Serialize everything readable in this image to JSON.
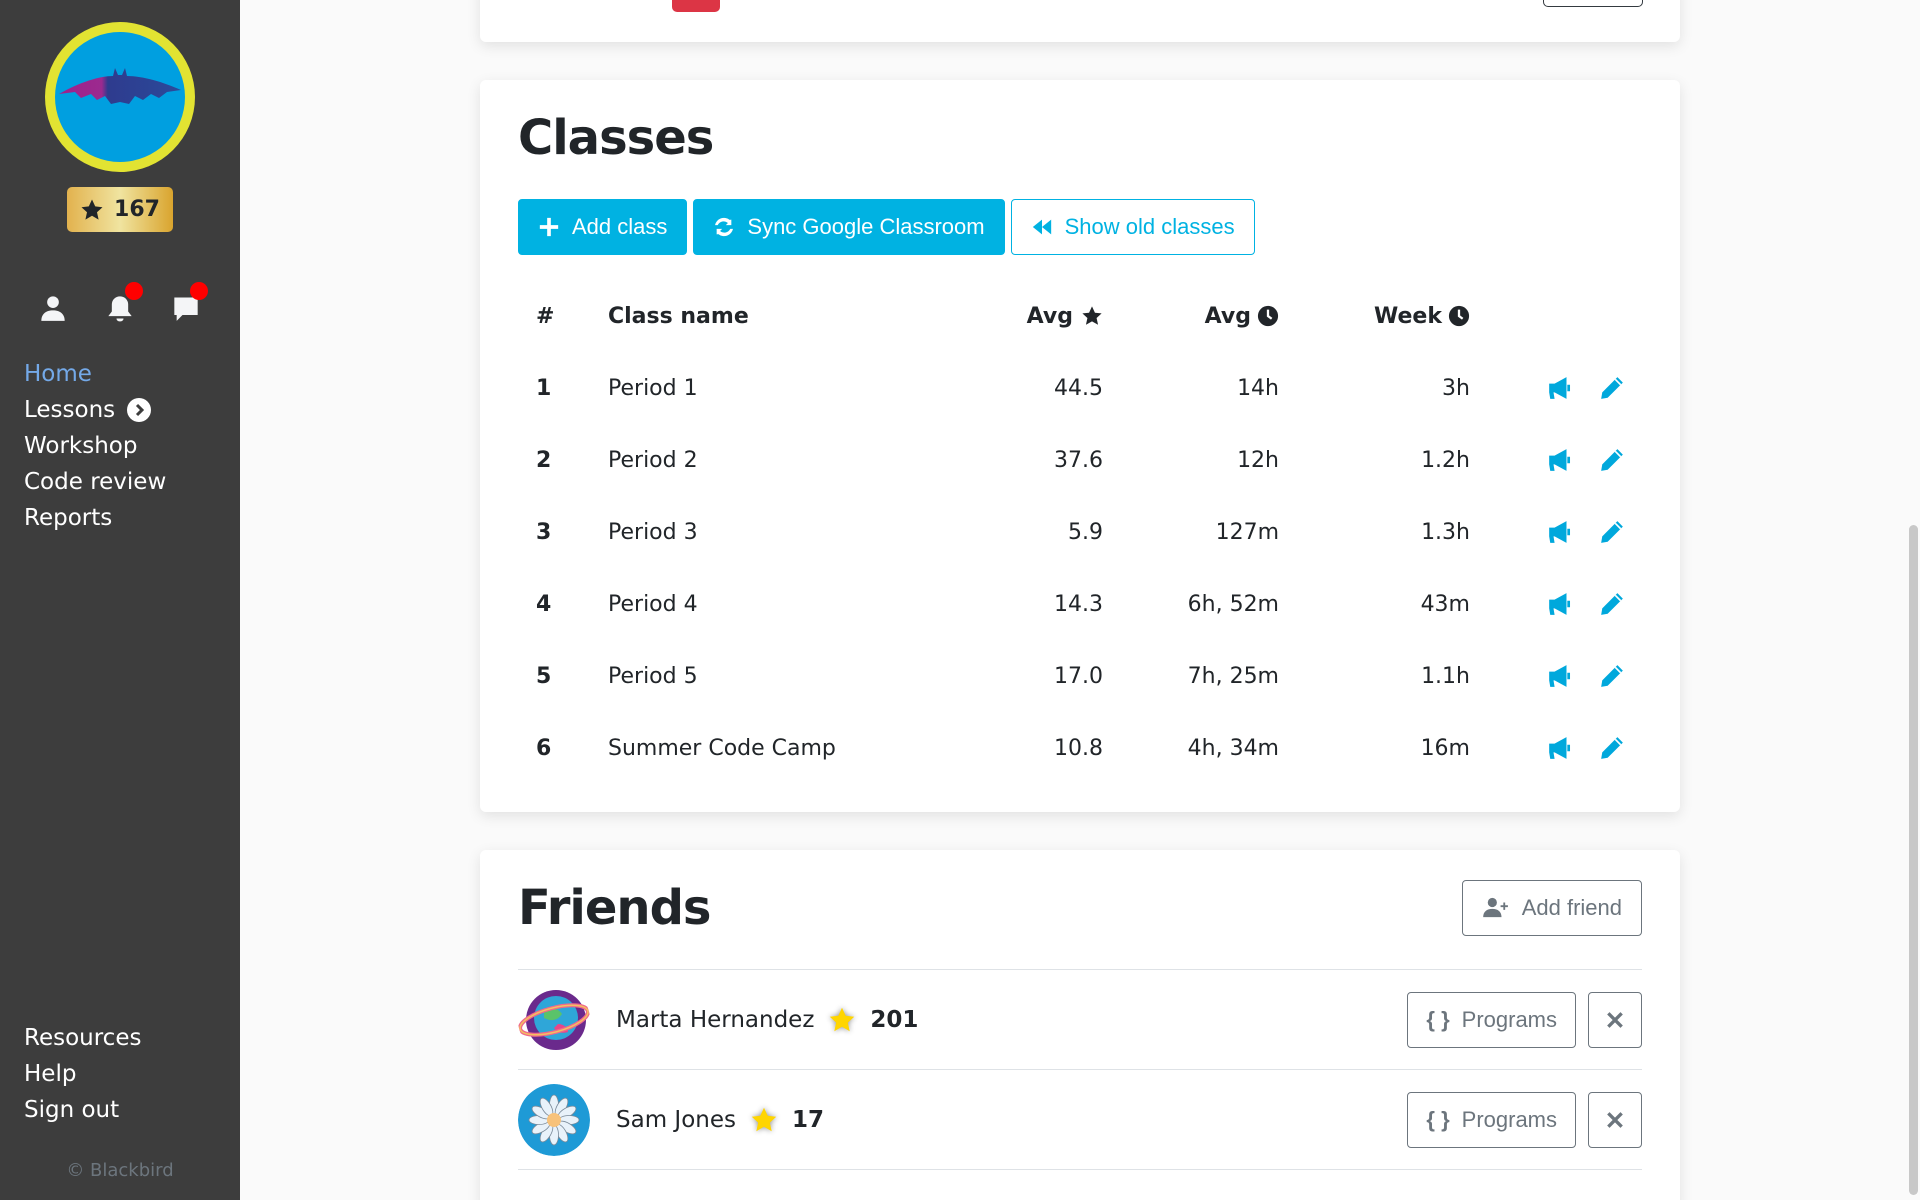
{
  "sidebar": {
    "stars": "167",
    "nav": [
      {
        "label": "Home",
        "active": true
      },
      {
        "label": "Lessons",
        "has_chevron": true
      },
      {
        "label": "Workshop"
      },
      {
        "label": "Code review"
      },
      {
        "label": "Reports"
      }
    ],
    "nav_bottom": [
      {
        "label": "Resources"
      },
      {
        "label": "Help"
      },
      {
        "label": "Sign out"
      }
    ],
    "icons": [
      "user-icon",
      "bell-icon",
      "comment-icon"
    ],
    "copyright": "© Blackbird"
  },
  "classes": {
    "title": "Classes",
    "buttons": {
      "add": "Add class",
      "sync": "Sync Google Classroom",
      "show_old": "Show old classes"
    },
    "columns": [
      "#",
      "Class name",
      "Avg",
      "Avg",
      "Week"
    ],
    "rows": [
      {
        "num": "1",
        "name": "Period 1",
        "avg_stars": "44.5",
        "avg_time": "14h",
        "week": "3h"
      },
      {
        "num": "2",
        "name": "Period 2",
        "avg_stars": "37.6",
        "avg_time": "12h",
        "week": "1.2h"
      },
      {
        "num": "3",
        "name": "Period 3",
        "avg_stars": "5.9",
        "avg_time": "127m",
        "week": "1.3h"
      },
      {
        "num": "4",
        "name": "Period 4",
        "avg_stars": "14.3",
        "avg_time": "6h, 52m",
        "week": "43m"
      },
      {
        "num": "5",
        "name": "Period 5",
        "avg_stars": "17.0",
        "avg_time": "7h, 25m",
        "week": "1.1h"
      },
      {
        "num": "6",
        "name": "Summer Code Camp",
        "avg_stars": "10.8",
        "avg_time": "4h, 34m",
        "week": "16m"
      }
    ]
  },
  "friends": {
    "title": "Friends",
    "add_label": "Add friend",
    "programs_label": "Programs",
    "list": [
      {
        "name": "Marta Hernandez",
        "stars": "201",
        "avatar": "planet"
      },
      {
        "name": "Sam Jones",
        "stars": "17",
        "avatar": "daisy"
      }
    ]
  },
  "colors": {
    "primary": "#00b2e2",
    "sidebar_bg": "#3d3d3d",
    "active_nav": "#74a9e8",
    "danger": "#dc3545",
    "notification": "#ff0000"
  }
}
